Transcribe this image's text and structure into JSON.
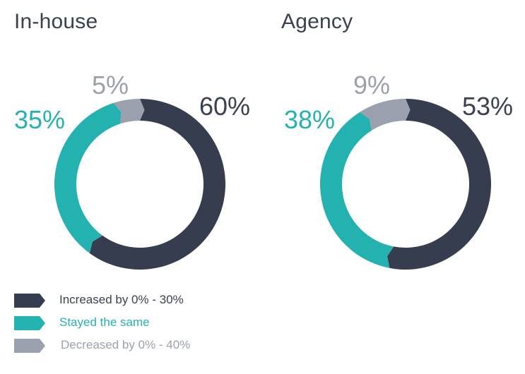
{
  "colors": {
    "increased": "#363d4e",
    "stayed": "#24b2b0",
    "decreased": "#9ba0ae"
  },
  "chart_data": [
    {
      "type": "pie",
      "style": "donut",
      "title": "In-house",
      "categories": [
        "Increased by 0% - 30%",
        "Stayed the same",
        "Decreased by 0% - 40%"
      ],
      "values": [
        60,
        35,
        5
      ],
      "labels": [
        "60%",
        "35%",
        "5%"
      ]
    },
    {
      "type": "pie",
      "style": "donut",
      "title": "Agency",
      "categories": [
        "Increased by 0% - 30%",
        "Stayed the same",
        "Decreased by 0% - 40%"
      ],
      "values": [
        53,
        38,
        9
      ],
      "labels": [
        "53%",
        "38%",
        "9%"
      ]
    }
  ],
  "legend": {
    "placement": "bottom-left",
    "items": [
      {
        "label": "Increased by 0% - 30%",
        "color": "#363d4e",
        "text_color": "#3a4150"
      },
      {
        "label": "Stayed the same",
        "color": "#24b2b0",
        "text_color": "#24b2b0"
      },
      {
        "label": "Decreased by 0% - 40%",
        "color": "#9ba0ae",
        "text_color": "#9ba0ae"
      }
    ]
  }
}
